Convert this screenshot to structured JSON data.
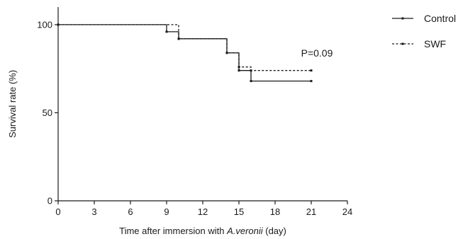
{
  "chart_data": {
    "type": "line",
    "subtype": "kaplan-meier-step",
    "xlabel_prefix": "Time after immersion with ",
    "xlabel_italic": "A.veronii",
    "xlabel_suffix": " (day)",
    "ylabel": "Survival rate  (%)",
    "xlim": [
      0,
      24
    ],
    "ylim": [
      0,
      110
    ],
    "xticks": [
      0,
      3,
      6,
      9,
      12,
      15,
      18,
      21,
      24
    ],
    "yticks": [
      0,
      50,
      100
    ],
    "grid": false,
    "legend_position": "top-right",
    "annotation": "P=0.09",
    "series": [
      {
        "name": "Control",
        "style": "solid",
        "color": "#1a1a1a",
        "x": [
          0,
          9,
          10,
          14,
          15,
          16,
          21
        ],
        "y": [
          100,
          96,
          92,
          84,
          74,
          68,
          68
        ]
      },
      {
        "name": "SWF",
        "style": "dashed",
        "color": "#1a1a1a",
        "x": [
          0,
          10,
          14,
          15,
          16,
          21
        ],
        "y": [
          100,
          92,
          84,
          76,
          74,
          74
        ]
      }
    ]
  }
}
